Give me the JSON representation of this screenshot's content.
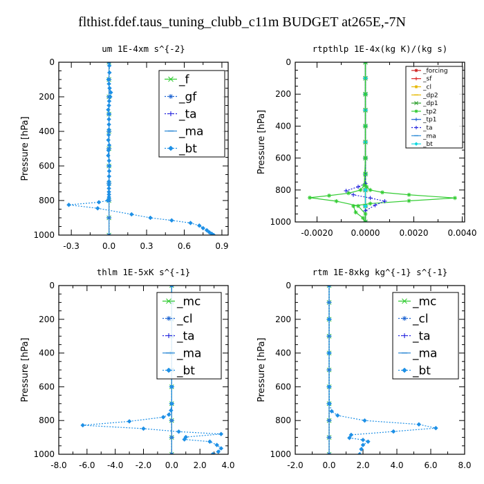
{
  "figure": {
    "title": "flthist.fdef.taus_tuning_clubb_c11m  BUDGET at265E,-7N"
  },
  "chart_data": [
    {
      "type": "line",
      "title": "um  1E-4xm s^{-2}",
      "ylabel": "Pressure [hPa]",
      "xlim": [
        -0.4,
        0.95
      ],
      "ylim": [
        1000,
        0
      ],
      "xticks": [
        -0.3,
        0.0,
        0.3,
        0.6,
        0.9
      ],
      "xticklabels": [
        "-0.3",
        "0.0",
        "0.3",
        "0.6",
        "0.9"
      ],
      "yticks": [
        0,
        200,
        400,
        600,
        800,
        1000
      ],
      "legend_position": "top-right",
      "legend_font_size": "large",
      "series": [
        {
          "name": "_f",
          "color": "#33cc33",
          "marker": "x",
          "dash": "solid",
          "x": [
            0,
            0,
            0,
            0,
            0,
            0,
            0,
            0,
            0,
            0,
            0
          ],
          "y": [
            0,
            100,
            200,
            300,
            400,
            500,
            600,
            700,
            800,
            900,
            1000
          ]
        },
        {
          "name": "_gf",
          "color": "#1e64d2",
          "marker": "star",
          "dash": "dotted",
          "x": [
            0,
            0,
            0,
            0,
            0,
            0,
            0,
            0,
            0,
            0,
            0
          ],
          "y": [
            0,
            100,
            200,
            300,
            400,
            500,
            600,
            700,
            800,
            900,
            1000
          ]
        },
        {
          "name": "_ta",
          "color": "#2020dd",
          "marker": "plus",
          "dash": "dotted",
          "x": [
            0,
            0,
            0,
            0,
            0,
            0,
            0,
            0,
            0,
            0,
            0
          ],
          "y": [
            0,
            100,
            200,
            300,
            400,
            500,
            600,
            700,
            800,
            900,
            1000
          ]
        },
        {
          "name": "_ma",
          "color": "#2e8bd6",
          "marker": "dash",
          "dash": "solid",
          "x": [
            0,
            0,
            0,
            0,
            0,
            0,
            0,
            0,
            0,
            0,
            0
          ],
          "y": [
            0,
            100,
            200,
            300,
            400,
            500,
            600,
            700,
            800,
            900,
            1000
          ]
        },
        {
          "name": "_bt",
          "color": "#1e90e6",
          "marker": "diamond",
          "dash": "dotted",
          "x": [
            0.0,
            0.003,
            0.004,
            -0.004,
            0.0,
            0.005,
            0.015,
            0.01,
            0.002,
            0.0,
            -0.006,
            0.001,
            0.0,
            0.0,
            0.0,
            -0.002,
            -0.005,
            0.002,
            -0.004,
            -0.006,
            0.001,
            0.003,
            0.002,
            0.001,
            0.0,
            0.0,
            0.0,
            0.0,
            0.0,
            0.0,
            0.0,
            -0.01,
            -0.08,
            -0.32,
            -0.09,
            0.18,
            0.33,
            0.5,
            0.65,
            0.72,
            0.75,
            0.78,
            0.8,
            0.82,
            0.835
          ],
          "y": [
            0,
            20,
            60,
            100,
            125,
            150,
            175,
            200,
            225,
            250,
            275,
            300,
            330,
            360,
            390,
            420,
            450,
            480,
            510,
            540,
            570,
            600,
            630,
            660,
            690,
            710,
            730,
            750,
            765,
            780,
            790,
            800,
            810,
            825,
            845,
            880,
            900,
            915,
            930,
            945,
            960,
            972,
            984,
            993,
            1000
          ]
        }
      ]
    },
    {
      "type": "line",
      "title": "rtpthlp  1E-4x(kg K)/(kg s)",
      "ylabel": "Pressure [hPa]",
      "xlim": [
        -0.0029,
        0.0041
      ],
      "ylim": [
        1000,
        0
      ],
      "xticks": [
        -0.002,
        0.0,
        0.002,
        0.004
      ],
      "xticklabels": [
        "-0.0020",
        "0.0000",
        "0.0020",
        "0.0040"
      ],
      "yticks": [
        0,
        200,
        400,
        600,
        800,
        1000
      ],
      "legend_position": "top-right",
      "legend_font_size": "small",
      "series": [
        {
          "name": "_forcing",
          "color": "#cc2222",
          "marker": "star",
          "dash": "solid",
          "x": [
            0,
            0,
            0,
            0,
            0,
            0,
            0,
            0,
            0,
            0,
            0
          ],
          "y": [
            0,
            100,
            200,
            300,
            400,
            500,
            600,
            700,
            800,
            900,
            1000
          ]
        },
        {
          "name": "_sf",
          "color": "#dd2222",
          "marker": "plus",
          "dash": "solid",
          "x": [
            0,
            0,
            0,
            0,
            0,
            0,
            0,
            0,
            0,
            0,
            0
          ],
          "y": [
            0,
            100,
            200,
            300,
            400,
            500,
            600,
            700,
            800,
            900,
            1000
          ]
        },
        {
          "name": "_cl",
          "color": "#e6b800",
          "marker": "star",
          "dash": "solid",
          "x": [
            0,
            0,
            0,
            0,
            0,
            0,
            0,
            0,
            0,
            0,
            0
          ],
          "y": [
            0,
            100,
            200,
            300,
            400,
            500,
            600,
            700,
            800,
            900,
            1000
          ]
        },
        {
          "name": "_dp2",
          "color": "#e6b800",
          "marker": "dash",
          "dash": "solid",
          "x": [
            0,
            0,
            0,
            0,
            0,
            0,
            0,
            0,
            0,
            0,
            0
          ],
          "y": [
            0,
            100,
            200,
            300,
            400,
            500,
            600,
            700,
            800,
            900,
            1000
          ]
        },
        {
          "name": "_dp1",
          "color": "#2ea02e",
          "marker": "x",
          "dash": "solid",
          "x": [
            0,
            0,
            0,
            0,
            0,
            0,
            0,
            0,
            0,
            0,
            0
          ],
          "y": [
            0,
            100,
            200,
            300,
            400,
            500,
            600,
            700,
            800,
            900,
            1000
          ]
        },
        {
          "name": "_tp2",
          "color": "#33cc33",
          "marker": "star",
          "dash": "solid",
          "x": [
            0.0,
            0.0,
            0.0,
            0.0,
            0.0,
            0.0,
            5e-05,
            0.0002,
            0.0007,
            0.0018,
            0.0037,
            0.0018,
            0.0002,
            -0.0005,
            -0.0004,
            -0.0001,
            0.0
          ],
          "y": [
            0,
            200,
            400,
            600,
            700,
            760,
            780,
            800,
            815,
            830,
            850,
            868,
            885,
            900,
            940,
            975,
            1000
          ]
        },
        {
          "name": "_tp1",
          "color": "#1e64d2",
          "marker": "plus",
          "dash": "solid",
          "x": [
            0,
            0,
            0,
            0,
            0,
            0,
            0,
            0,
            0,
            0,
            0
          ],
          "y": [
            0,
            100,
            200,
            300,
            400,
            500,
            600,
            700,
            800,
            900,
            1000
          ]
        },
        {
          "name": "_ta",
          "color": "#2020dd",
          "marker": "plus",
          "dash": "dotted",
          "x": [
            0.0,
            0.0,
            0.0,
            -0.0003,
            -0.0008,
            -0.0005,
            0.0002,
            0.0008,
            0.0004,
            0.0,
            0.0
          ],
          "y": [
            0,
            600,
            760,
            780,
            805,
            830,
            850,
            870,
            895,
            930,
            1000
          ]
        },
        {
          "name": "_ma",
          "color": "#2e8bd6",
          "marker": "dash",
          "dash": "solid",
          "x": [
            0,
            0,
            0,
            0,
            0,
            0,
            0,
            0,
            0,
            0,
            0
          ],
          "y": [
            0,
            100,
            200,
            300,
            400,
            500,
            600,
            700,
            800,
            900,
            1000
          ]
        },
        {
          "name": "_bt",
          "color": "#11d9e0",
          "marker": "diamond",
          "dash": "solid",
          "x": [
            0,
            0,
            0,
            0,
            0,
            0,
            0,
            0,
            0,
            0,
            0
          ],
          "y": [
            0,
            100,
            200,
            300,
            400,
            500,
            600,
            700,
            800,
            900,
            1000
          ]
        },
        {
          "name": "",
          "color": "#33cc33",
          "marker": "star",
          "dash": "solid",
          "x": [
            0.0,
            0.0,
            -5e-05,
            -0.0002,
            -0.0007,
            -0.0015,
            -0.0023,
            -0.0012,
            -0.0003,
            0.0,
            0.0
          ],
          "y": [
            0,
            600,
            770,
            800,
            820,
            835,
            848,
            870,
            900,
            950,
            1000
          ]
        }
      ]
    },
    {
      "type": "line",
      "title": "thlm  1E-5xK s^{-1}",
      "ylabel": "Pressure [hPa]",
      "xlim": [
        -8.0,
        4.0
      ],
      "ylim": [
        1000,
        0
      ],
      "xticks": [
        -8.0,
        -6.0,
        -4.0,
        -2.0,
        0.0,
        2.0,
        4.0
      ],
      "xticklabels": [
        "-8.0",
        "-6.0",
        "-4.0",
        "-2.0",
        "0.0",
        "2.0",
        "4.0"
      ],
      "yticks": [
        0,
        200,
        400,
        600,
        800,
        1000
      ],
      "legend_position": "top-right",
      "legend_font_size": "large",
      "series": [
        {
          "name": "_mc",
          "color": "#33cc33",
          "marker": "x",
          "dash": "solid",
          "x": [
            0,
            0,
            0,
            0,
            0,
            0,
            0,
            0,
            0,
            0,
            0
          ],
          "y": [
            0,
            100,
            200,
            300,
            400,
            500,
            600,
            700,
            800,
            900,
            1000
          ]
        },
        {
          "name": "_cl",
          "color": "#1e64d2",
          "marker": "star",
          "dash": "dotted",
          "x": [
            0,
            0,
            0,
            0,
            0,
            0,
            0,
            0,
            0,
            0,
            0
          ],
          "y": [
            0,
            100,
            200,
            300,
            400,
            500,
            600,
            700,
            800,
            900,
            1000
          ]
        },
        {
          "name": "_ta",
          "color": "#2020dd",
          "marker": "plus",
          "dash": "dotted",
          "x": [
            0,
            0,
            0,
            0,
            0,
            0,
            0,
            0,
            0,
            0,
            0
          ],
          "y": [
            0,
            100,
            200,
            300,
            400,
            500,
            600,
            700,
            800,
            900,
            1000
          ]
        },
        {
          "name": "_ma",
          "color": "#2e8bd6",
          "marker": "dash",
          "dash": "solid",
          "x": [
            0,
            0,
            0,
            0,
            0,
            0,
            0,
            0,
            0,
            0,
            0
          ],
          "y": [
            0,
            100,
            200,
            300,
            400,
            500,
            600,
            700,
            800,
            900,
            1000
          ]
        },
        {
          "name": "_bt",
          "color": "#1e90e6",
          "marker": "diamond",
          "dash": "dotted",
          "x": [
            0.0,
            0.0,
            0.0,
            0.0,
            0.0,
            -0.05,
            -0.2,
            -0.6,
            -3.0,
            -6.3,
            -2.0,
            0.5,
            3.5,
            1.0,
            0.9,
            2.7,
            3.2,
            3.5,
            3.3,
            2.9
          ],
          "y": [
            0,
            200,
            400,
            600,
            700,
            740,
            765,
            780,
            805,
            828,
            848,
            866,
            880,
            898,
            912,
            925,
            945,
            965,
            985,
            1000
          ]
        }
      ]
    },
    {
      "type": "line",
      "title": "rtm  1E-8xkg kg^{-1} s^{-1}",
      "ylabel": "Pressure [hPa]",
      "xlim": [
        -2.0,
        8.0
      ],
      "ylim": [
        1000,
        0
      ],
      "xticks": [
        -2.0,
        0.0,
        2.0,
        4.0,
        6.0,
        8.0
      ],
      "xticklabels": [
        "-2.0",
        "0.0",
        "2.0",
        "4.0",
        "6.0",
        "8.0"
      ],
      "yticks": [
        0,
        200,
        400,
        600,
        800,
        1000
      ],
      "legend_position": "top-right",
      "legend_font_size": "large",
      "series": [
        {
          "name": "_mc",
          "color": "#33cc33",
          "marker": "x",
          "dash": "solid",
          "x": [
            0,
            0,
            0,
            0,
            0,
            0,
            0,
            0,
            0,
            0,
            0
          ],
          "y": [
            0,
            100,
            200,
            300,
            400,
            500,
            600,
            700,
            800,
            900,
            1000
          ]
        },
        {
          "name": "_cl",
          "color": "#1e64d2",
          "marker": "star",
          "dash": "dotted",
          "x": [
            0,
            0,
            0,
            0,
            0,
            0,
            0,
            0,
            0,
            0,
            0
          ],
          "y": [
            0,
            100,
            200,
            300,
            400,
            500,
            600,
            700,
            800,
            900,
            1000
          ]
        },
        {
          "name": "_ta",
          "color": "#2020dd",
          "marker": "plus",
          "dash": "dotted",
          "x": [
            0,
            0,
            0,
            0,
            0,
            0,
            0,
            0,
            0,
            0,
            0
          ],
          "y": [
            0,
            100,
            200,
            300,
            400,
            500,
            600,
            700,
            800,
            900,
            1000
          ]
        },
        {
          "name": "_ma",
          "color": "#2e8bd6",
          "marker": "dash",
          "dash": "solid",
          "x": [
            0,
            0,
            0,
            0,
            0,
            0,
            0,
            0,
            0,
            0,
            0
          ],
          "y": [
            0,
            100,
            200,
            300,
            400,
            500,
            600,
            700,
            800,
            900,
            1000
          ]
        },
        {
          "name": "_bt",
          "color": "#1e90e6",
          "marker": "diamond",
          "dash": "dotted",
          "x": [
            0.0,
            0.0,
            0.0,
            0.0,
            0.02,
            0.15,
            0.5,
            2.1,
            5.3,
            6.3,
            3.8,
            1.3,
            1.2,
            2.0,
            2.3,
            2.0,
            1.9,
            1.8
          ],
          "y": [
            0,
            200,
            400,
            600,
            700,
            745,
            770,
            800,
            823,
            845,
            865,
            885,
            903,
            915,
            925,
            945,
            970,
            1000
          ]
        }
      ]
    }
  ]
}
